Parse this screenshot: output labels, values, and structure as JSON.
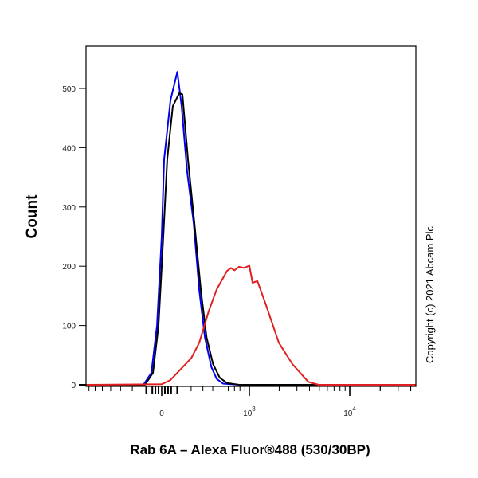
{
  "chart_data": {
    "type": "line",
    "title": "",
    "xlabel": "Rab 6A – Alexa Fluor®488 (530/30BP)",
    "ylabel": "Count",
    "x_scale": "biexponential",
    "xlim": [
      -750,
      45000
    ],
    "ylim": [
      0,
      570
    ],
    "yticks": [
      0,
      100,
      200,
      300,
      400,
      500
    ],
    "ytick_labels": [
      "0",
      "100",
      "200",
      "300",
      "400",
      "500"
    ],
    "xticks": [
      {
        "value": 0,
        "label": "0",
        "sup": ""
      },
      {
        "value": 1000,
        "label": "10",
        "sup": "3"
      },
      {
        "value": 10000,
        "label": "10",
        "sup": "4"
      }
    ],
    "grid": false,
    "series": [
      {
        "color": "#0000ee",
        "points": [
          [
            -750,
            0
          ],
          [
            -119,
            0
          ],
          [
            -66,
            20
          ],
          [
            -30,
            100
          ],
          [
            0,
            250
          ],
          [
            15,
            380
          ],
          [
            56,
            480
          ],
          [
            101,
            528
          ],
          [
            130,
            470
          ],
          [
            170,
            360
          ],
          [
            220,
            273
          ],
          [
            267,
            160
          ],
          [
            319,
            80
          ],
          [
            385,
            30
          ],
          [
            445,
            10
          ],
          [
            525,
            2
          ],
          [
            782,
            0
          ],
          [
            45000,
            0
          ]
        ]
      },
      {
        "color": "#000000",
        "points": [
          [
            -750,
            0
          ],
          [
            -108,
            0
          ],
          [
            -56,
            20
          ],
          [
            -20,
            100
          ],
          [
            10,
            250
          ],
          [
            35,
            380
          ],
          [
            71,
            470
          ],
          [
            114,
            492
          ],
          [
            136,
            490
          ],
          [
            176,
            380
          ],
          [
            226,
            273
          ],
          [
            281,
            160
          ],
          [
            335,
            80
          ],
          [
            403,
            35
          ],
          [
            483,
            12
          ],
          [
            581,
            3
          ],
          [
            782,
            0
          ],
          [
            45000,
            0
          ]
        ]
      },
      {
        "color": "#e02020",
        "points": [
          [
            -750,
            0
          ],
          [
            0,
            1
          ],
          [
            56,
            8
          ],
          [
            130,
            28
          ],
          [
            201,
            45
          ],
          [
            267,
            71
          ],
          [
            359,
            125
          ],
          [
            445,
            161
          ],
          [
            581,
            192
          ],
          [
            643,
            197
          ],
          [
            700,
            193
          ],
          [
            782,
            199
          ],
          [
            880,
            197
          ],
          [
            1001,
            201
          ],
          [
            1079,
            172
          ],
          [
            1209,
            175
          ],
          [
            1451,
            138
          ],
          [
            1982,
            71
          ],
          [
            2705,
            35
          ],
          [
            3890,
            5
          ],
          [
            4929,
            0
          ],
          [
            45000,
            0
          ]
        ]
      }
    ]
  },
  "copyright": "Copyright (c) 2021 Abcam Plc"
}
